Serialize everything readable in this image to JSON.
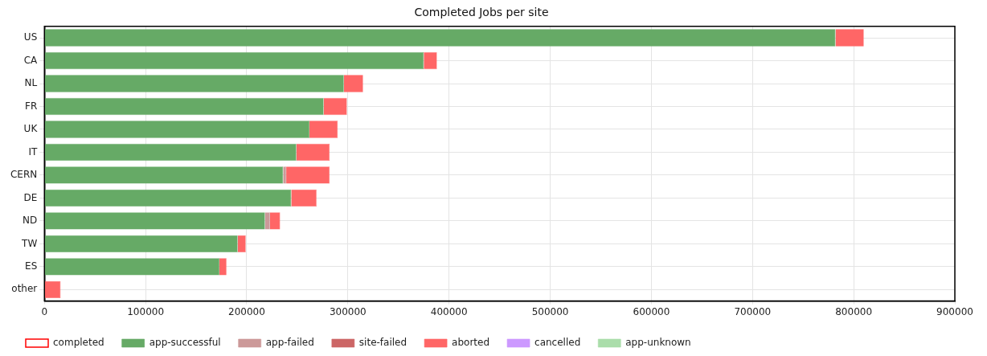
{
  "chart_data": {
    "type": "bar",
    "orientation": "horizontal",
    "stacked": true,
    "title": "Completed Jobs per site",
    "categories": [
      "US",
      "CA",
      "NL",
      "FR",
      "UK",
      "IT",
      "CERN",
      "DE",
      "ND",
      "TW",
      "ES",
      "other"
    ],
    "xlim": [
      0,
      900000
    ],
    "xticks": [
      0,
      100000,
      200000,
      300000,
      400000,
      500000,
      600000,
      700000,
      800000,
      900000
    ],
    "grid": true,
    "legend": "bottom",
    "series": [
      {
        "name": "completed",
        "color": "#ff0000",
        "values": [
          null,
          null,
          null,
          null,
          null,
          null,
          null,
          null,
          null,
          null,
          null,
          null
        ]
      },
      {
        "name": "app-successful",
        "color": "#66aa66",
        "values": [
          782000,
          375000,
          296000,
          276000,
          262000,
          249000,
          236000,
          244000,
          218000,
          191000,
          173000,
          0
        ]
      },
      {
        "name": "app-failed",
        "color": "#cc9999",
        "values": [
          0,
          0,
          0,
          0,
          0,
          0,
          3000,
          0,
          5000,
          0,
          0,
          0
        ]
      },
      {
        "name": "site-failed",
        "color": "#cc6666",
        "values": [
          0,
          0,
          0,
          0,
          0,
          0,
          0,
          0,
          0,
          0,
          0,
          0
        ]
      },
      {
        "name": "aborted",
        "color": "#ff6666",
        "values": [
          28000,
          13000,
          19000,
          23000,
          28000,
          33000,
          43000,
          25000,
          10000,
          8000,
          7000,
          16000
        ]
      },
      {
        "name": "cancelled",
        "color": "#cc99ff",
        "values": [
          0,
          0,
          0,
          0,
          0,
          0,
          0,
          0,
          0,
          0,
          0,
          0
        ]
      },
      {
        "name": "app-unknown",
        "color": "#aaddaa",
        "values": [
          0,
          0,
          0,
          0,
          0,
          0,
          0,
          0,
          0,
          0,
          0,
          0
        ]
      }
    ]
  }
}
